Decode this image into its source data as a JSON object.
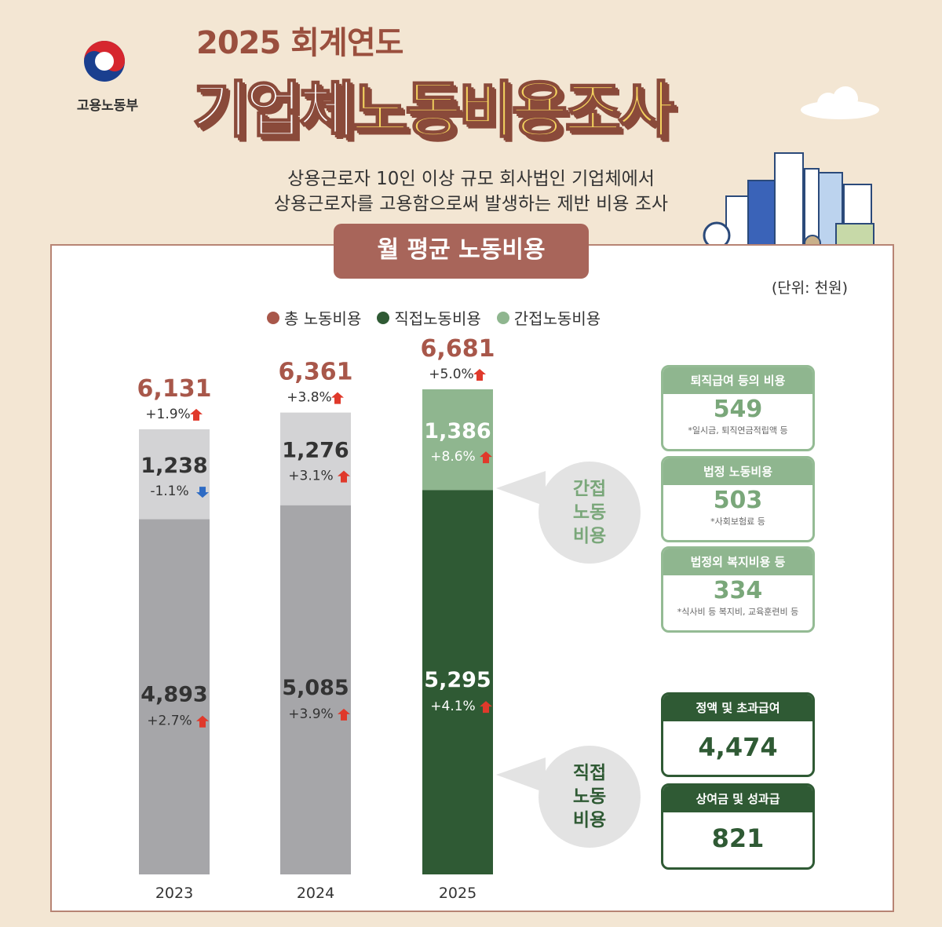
{
  "header": {
    "year_title": "2025 회계연도",
    "title_part1": "기업체",
    "title_part2": "노동비용조사",
    "org": "고용노동부",
    "subtitle_line1": "상용근로자 10인 이상 규모 회사법인 기업체에서",
    "subtitle_line2": "상용근로자를 고용함으로써 발생하는 제반 비용 조사"
  },
  "section_title": "월 평균 노동비용",
  "unit": "(단위: 천원)",
  "legend": {
    "total": "총 노동비용",
    "direct": "직접노동비용",
    "indirect": "간접노동비용"
  },
  "colors": {
    "total": "#a8574a",
    "direct": "#2f5a34",
    "indirect": "#8fb68f",
    "gray_light": "#d3d3d5",
    "gray_dark": "#a6a6a9",
    "up": "#e0392b",
    "down": "#2e6bc4"
  },
  "chart_data": {
    "type": "bar",
    "stacked": true,
    "categories": [
      "2023",
      "2024",
      "2025"
    ],
    "series": [
      {
        "name": "직접노동비용",
        "values": [
          4893,
          5085,
          5295
        ],
        "changes": [
          "+2.7%",
          "+3.9%",
          "+4.1%"
        ],
        "directions": [
          "up",
          "up",
          "up"
        ]
      },
      {
        "name": "간접노동비용",
        "values": [
          1238,
          1276,
          1386
        ],
        "changes": [
          "-1.1%",
          "+3.1%",
          "+8.6%"
        ],
        "directions": [
          "down",
          "up",
          "up"
        ]
      }
    ],
    "totals": [
      6131,
      6361,
      6681
    ],
    "total_labels": [
      "6,131",
      "6,361",
      "6,681"
    ],
    "total_changes": [
      "+1.9%",
      "+3.8%",
      "+5.0%"
    ],
    "direct_labels": [
      "4,893",
      "5,085",
      "5,295"
    ],
    "indirect_labels": [
      "1,238",
      "1,276",
      "1,386"
    ]
  },
  "indirect_bubble": [
    "간접",
    "노동",
    "비용"
  ],
  "direct_bubble": [
    "직접",
    "노동",
    "비용"
  ],
  "indirect_breakdown": [
    {
      "label": "퇴직급여 등의 비용",
      "value": "549",
      "note": "*일시금, 퇴직연금적립액 등"
    },
    {
      "label": "법정 노동비용",
      "value": "503",
      "note": "*사회보험료 등"
    },
    {
      "label": "법정외 복지비용 등",
      "value": "334",
      "note": "*식사비 등 복지비, 교육훈련비 등"
    }
  ],
  "direct_breakdown": [
    {
      "label": "정액 및 초과급여",
      "value": "4,474"
    },
    {
      "label": "상여금 및 성과급",
      "value": "821"
    }
  ]
}
